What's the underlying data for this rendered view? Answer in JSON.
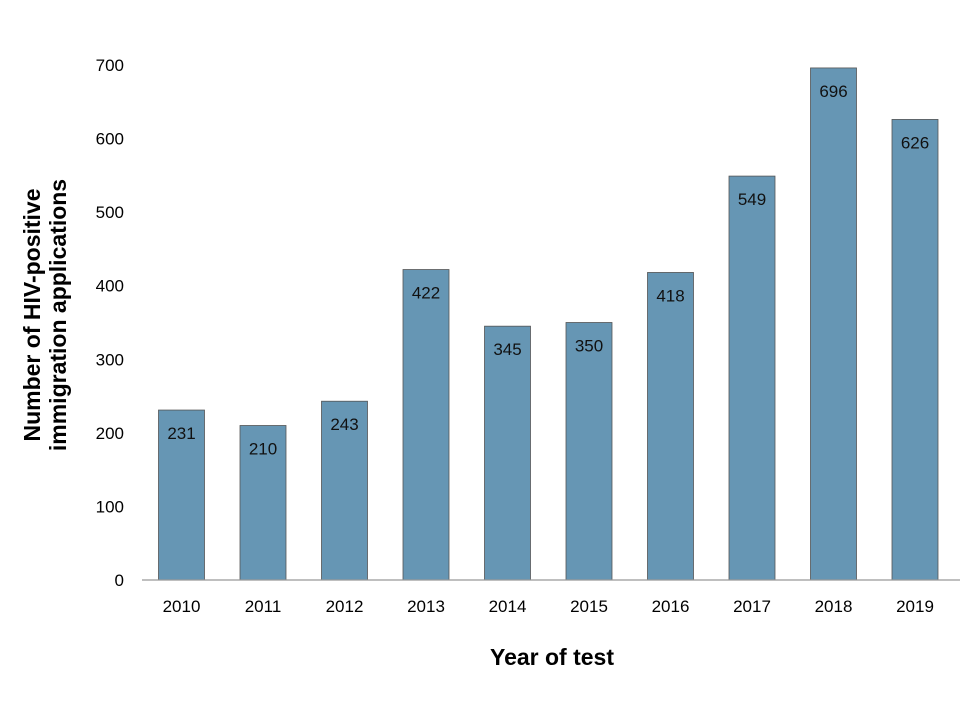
{
  "chart_data": {
    "type": "bar",
    "title": "",
    "xlabel": "Year of test",
    "ylabel_lines": [
      "Number of HIV-positive",
      "immigration applications"
    ],
    "categories": [
      "2010",
      "2011",
      "2012",
      "2013",
      "2014",
      "2015",
      "2016",
      "2017",
      "2018",
      "2019"
    ],
    "values": [
      231,
      210,
      243,
      422,
      345,
      350,
      418,
      549,
      696,
      626
    ],
    "data_labels": [
      "231",
      "210",
      "243",
      "422",
      "345",
      "350",
      "418",
      "549",
      "696",
      "626"
    ],
    "ylim": [
      0,
      700
    ],
    "yticks": [
      "0",
      "100",
      "200",
      "300",
      "400",
      "500",
      "600",
      "700"
    ],
    "grid": false,
    "bar_color": "#6696b4",
    "bar_edge_color": "#555555"
  }
}
